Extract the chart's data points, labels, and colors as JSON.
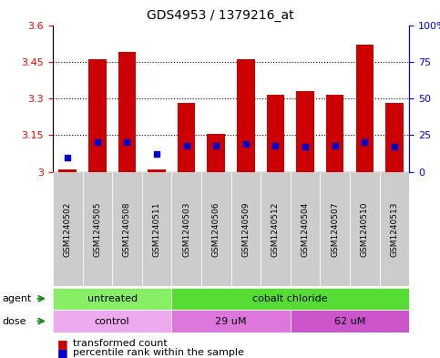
{
  "title": "GDS4953 / 1379216_at",
  "samples": [
    "GSM1240502",
    "GSM1240505",
    "GSM1240508",
    "GSM1240511",
    "GSM1240503",
    "GSM1240506",
    "GSM1240509",
    "GSM1240512",
    "GSM1240504",
    "GSM1240507",
    "GSM1240510",
    "GSM1240513"
  ],
  "transformed_count": [
    3.01,
    3.46,
    3.49,
    3.01,
    3.28,
    3.155,
    3.46,
    3.315,
    3.33,
    3.315,
    3.52,
    3.28
  ],
  "percentile_rank": [
    10,
    20,
    20,
    12,
    18,
    18,
    19,
    18,
    17,
    18,
    20,
    17
  ],
  "ylim_left": [
    3.0,
    3.6
  ],
  "ylim_right": [
    0,
    100
  ],
  "yticks_left": [
    3.0,
    3.15,
    3.3,
    3.45,
    3.6
  ],
  "yticks_right": [
    0,
    25,
    50,
    75,
    100
  ],
  "ytick_labels_left": [
    "3",
    "3.15",
    "3.3",
    "3.45",
    "3.6"
  ],
  "ytick_labels_right": [
    "0",
    "25",
    "50",
    "75",
    "100%"
  ],
  "bar_color": "#cc0000",
  "dot_color": "#0000cc",
  "agent_groups": [
    {
      "label": "untreated",
      "start": 0,
      "end": 4,
      "color": "#88ee66"
    },
    {
      "label": "cobalt chloride",
      "start": 4,
      "end": 12,
      "color": "#55dd33"
    }
  ],
  "dose_groups": [
    {
      "label": "control",
      "start": 0,
      "end": 4,
      "color": "#eeaaee"
    },
    {
      "label": "29 uM",
      "start": 4,
      "end": 8,
      "color": "#dd77dd"
    },
    {
      "label": "62 uM",
      "start": 8,
      "end": 12,
      "color": "#cc55cc"
    }
  ],
  "legend_bar_label": "transformed count",
  "legend_dot_label": "percentile rank within the sample",
  "arrow_color": "#228B22",
  "agent_label_color": "#006600",
  "dose_label_color": "#660066"
}
